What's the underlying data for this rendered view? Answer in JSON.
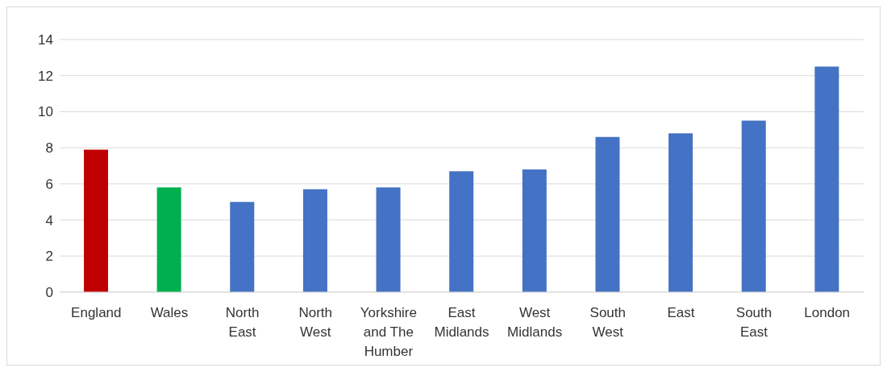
{
  "chart_data": {
    "type": "bar",
    "categories": [
      "England",
      "Wales",
      "North East",
      "North West",
      "Yorkshire and The Humber",
      "East Midlands",
      "West Midlands",
      "South West",
      "East",
      "South East",
      "London"
    ],
    "values": [
      7.9,
      5.8,
      5.0,
      5.7,
      5.8,
      6.7,
      6.8,
      8.6,
      8.8,
      9.5,
      12.5
    ],
    "colors": [
      "#c00000",
      "#00b050",
      "#4472c4",
      "#4472c4",
      "#4472c4",
      "#4472c4",
      "#4472c4",
      "#4472c4",
      "#4472c4",
      "#4472c4",
      "#4472c4"
    ],
    "ylim": [
      0,
      14
    ],
    "yticks": [
      0,
      2,
      4,
      6,
      8,
      10,
      12,
      14
    ],
    "grid": "y"
  }
}
